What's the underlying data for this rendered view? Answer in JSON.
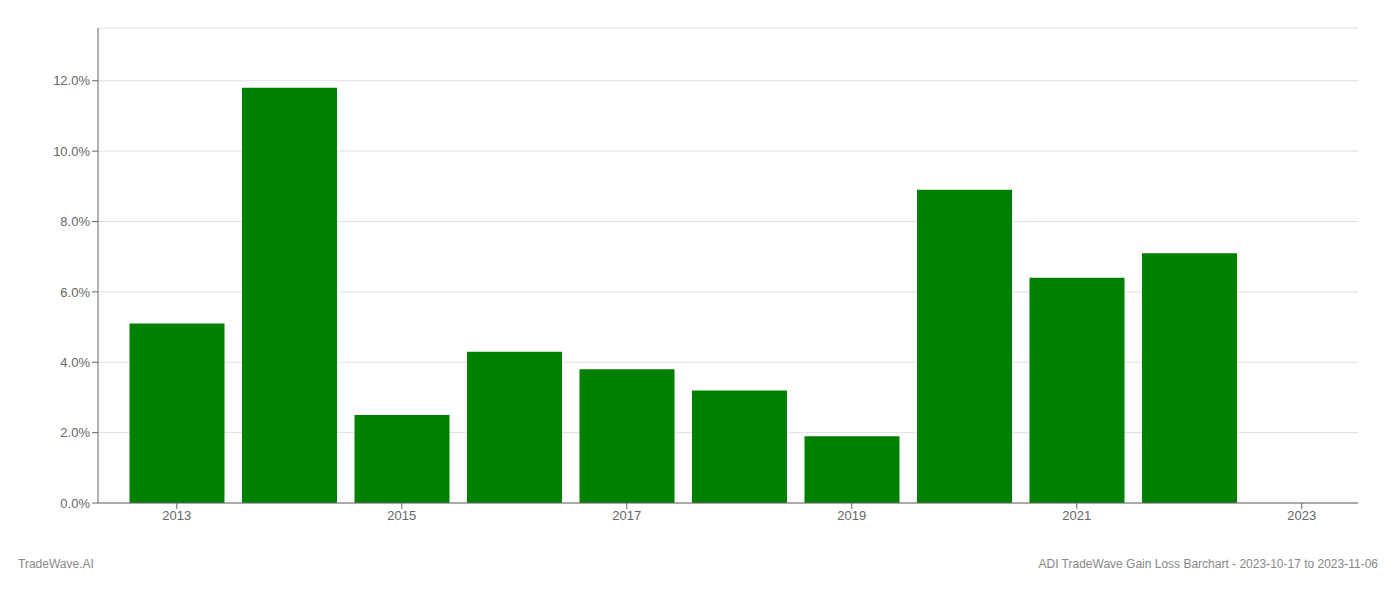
{
  "chart_data": {
    "type": "bar",
    "x": [
      2013,
      2014,
      2015,
      2016,
      2017,
      2018,
      2019,
      2020,
      2021,
      2022
    ],
    "values": [
      0.051,
      0.118,
      0.025,
      0.043,
      0.038,
      0.032,
      0.019,
      0.089,
      0.064,
      0.071
    ],
    "color": "#008000",
    "xlim": [
      2012.3,
      2023.5
    ],
    "xticks": [
      2013,
      2015,
      2017,
      2019,
      2021,
      2023
    ],
    "ylim": [
      0,
      0.135
    ],
    "yticks": [
      {
        "value": 0.0,
        "label": "0.0%"
      },
      {
        "value": 0.02,
        "label": "2.0%"
      },
      {
        "value": 0.04,
        "label": "4.0%"
      },
      {
        "value": 0.06,
        "label": "6.0%"
      },
      {
        "value": 0.08,
        "label": "8.0%"
      },
      {
        "value": 0.1,
        "label": "10.0%"
      },
      {
        "value": 0.12,
        "label": "12.0%"
      }
    ],
    "grid": true,
    "annotations": [
      "TradeWave.AI",
      "ADI TradeWave Gain Loss Barchart - 2023-10-17 to 2023-11-06"
    ]
  }
}
